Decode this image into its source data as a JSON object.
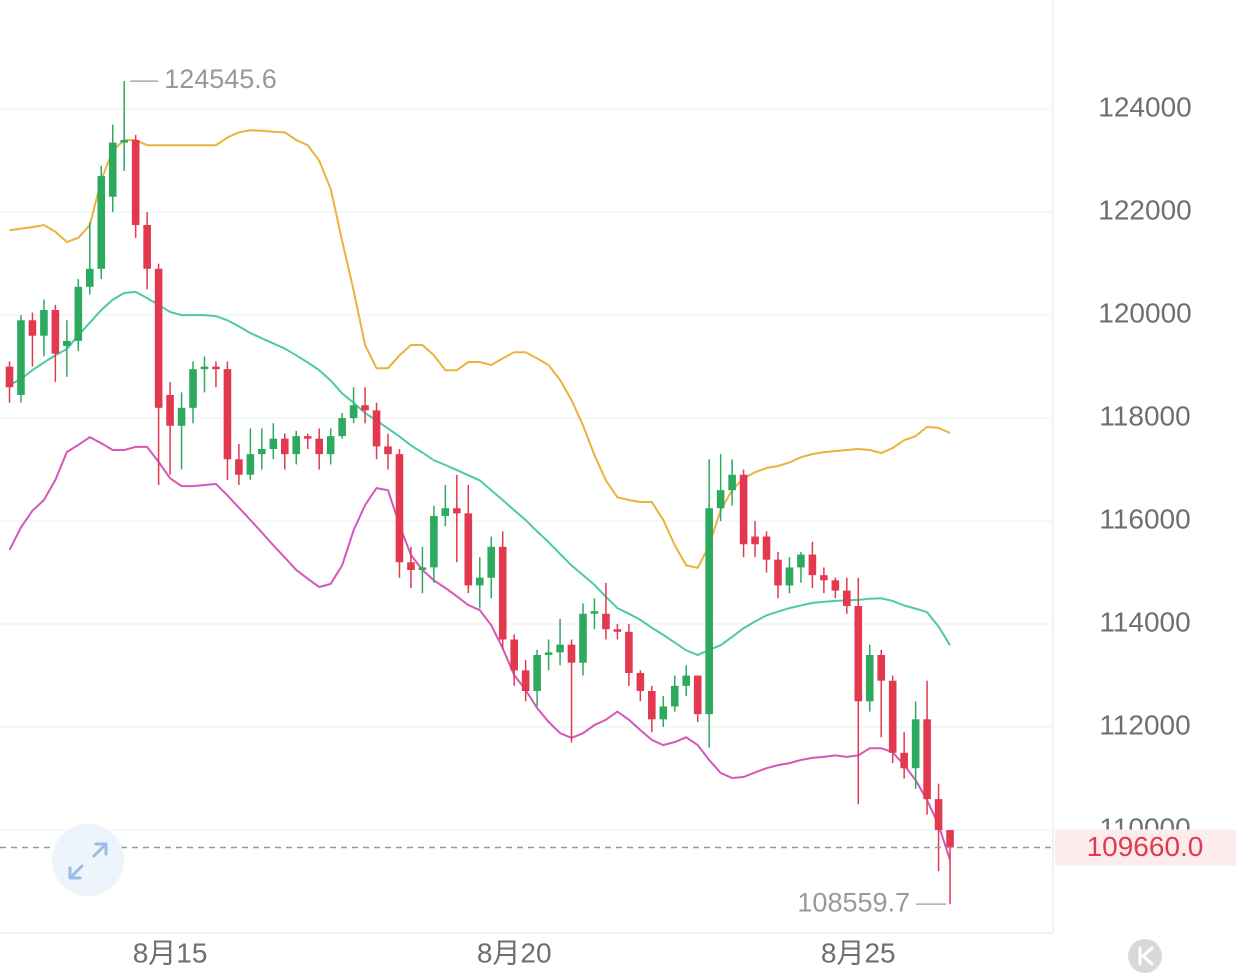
{
  "chart_data": {
    "type": "candlestick",
    "categories": [
      null,
      null,
      null,
      null,
      null,
      null,
      null,
      null,
      null,
      null,
      null,
      null,
      null,
      null,
      "8月15",
      null,
      null,
      null,
      null,
      null,
      null,
      null,
      null,
      null,
      null,
      null,
      null,
      null,
      null,
      null,
      null,
      null,
      null,
      null,
      null,
      null,
      null,
      null,
      null,
      null,
      null,
      null,
      null,
      null,
      "8月20",
      null,
      null,
      null,
      null,
      null,
      null,
      null,
      null,
      null,
      null,
      null,
      null,
      null,
      null,
      null,
      null,
      null,
      null,
      null,
      null,
      null,
      null,
      null,
      null,
      null,
      null,
      null,
      null,
      null,
      "8月25",
      null,
      null,
      null,
      null,
      null,
      null,
      null,
      null
    ],
    "open": [
      119000,
      118450,
      119900,
      119600,
      120100,
      119400,
      119500,
      120550,
      120900,
      122300,
      123350,
      123400,
      121750,
      120900,
      118450,
      117850,
      118200,
      118950,
      119000,
      118950,
      117200,
      116900,
      117300,
      117400,
      117600,
      117300,
      117650,
      117600,
      117300,
      117650,
      118000,
      118250,
      118150,
      117450,
      117300,
      115200,
      115050,
      115100,
      116100,
      116250,
      116150,
      114750,
      114900,
      115500,
      113700,
      113100,
      112700,
      113400,
      113450,
      113600,
      113250,
      114200,
      114200,
      113900,
      113850,
      113050,
      112700,
      112150,
      112400,
      112800,
      113000,
      112250,
      116250,
      116600,
      116900,
      115700,
      115700,
      115250,
      114750,
      115100,
      115350,
      114950,
      114850,
      114650,
      114350,
      112500,
      113400,
      112900,
      111500,
      111200,
      112150,
      110600,
      110000
    ],
    "high": [
      119100,
      120000,
      120050,
      120300,
      120200,
      119900,
      120700,
      121800,
      122900,
      123700,
      124545.6,
      123500,
      122000,
      121000,
      118700,
      118500,
      119100,
      119200,
      119100,
      119100,
      117500,
      117800,
      117800,
      117900,
      117700,
      117750,
      117700,
      117800,
      117800,
      118100,
      118600,
      118600,
      118300,
      117700,
      117400,
      115500,
      115500,
      116300,
      116700,
      116900,
      116700,
      115300,
      115700,
      115800,
      113800,
      113300,
      113500,
      113700,
      114100,
      113700,
      114400,
      114500,
      114800,
      114000,
      114000,
      113100,
      112800,
      112600,
      113000,
      113200,
      113000,
      117200,
      117300,
      117200,
      117000,
      116000,
      115800,
      115400,
      115300,
      115400,
      115600,
      115100,
      114900,
      114900,
      114900,
      113600,
      113500,
      113000,
      111900,
      112500,
      112900,
      110900,
      110000
    ],
    "low": [
      118300,
      118300,
      119000,
      119200,
      118700,
      118800,
      119300,
      120400,
      120700,
      122000,
      122800,
      121500,
      120500,
      116700,
      116900,
      117000,
      117900,
      118500,
      118600,
      116800,
      116700,
      116800,
      117000,
      117200,
      117000,
      117100,
      117400,
      117000,
      117100,
      117600,
      117900,
      117900,
      117200,
      117000,
      114900,
      114700,
      114600,
      114800,
      115900,
      115200,
      114600,
      114300,
      114500,
      113500,
      112800,
      112500,
      112400,
      113100,
      113200,
      111700,
      113000,
      113900,
      113700,
      113700,
      112800,
      112500,
      111900,
      112000,
      112300,
      112600,
      112100,
      111600,
      116000,
      116300,
      115300,
      115300,
      115000,
      114500,
      114600,
      114800,
      114700,
      114600,
      114500,
      114200,
      110500,
      112300,
      111800,
      111300,
      111000,
      110800,
      110300,
      109200,
      108559.7
    ],
    "close": [
      118600,
      119900,
      119600,
      120100,
      119250,
      119500,
      120550,
      120900,
      122700,
      123350,
      123400,
      121750,
      120900,
      118200,
      117850,
      118200,
      118950,
      119000,
      118950,
      117200,
      116900,
      117300,
      117400,
      117600,
      117300,
      117650,
      117600,
      117300,
      117650,
      118000,
      118250,
      118150,
      117450,
      117300,
      115200,
      115050,
      115100,
      116100,
      116250,
      116150,
      114750,
      114900,
      115500,
      113700,
      113100,
      112700,
      113400,
      113450,
      113600,
      113250,
      114200,
      114250,
      113900,
      113850,
      113050,
      112700,
      112150,
      112400,
      112800,
      113000,
      112250,
      116250,
      116600,
      116900,
      115550,
      115550,
      115250,
      114750,
      115100,
      115350,
      114950,
      114850,
      114650,
      114350,
      112500,
      113400,
      112900,
      111500,
      111200,
      112150,
      110600,
      110000,
      109660
    ],
    "up_color": "#2eaa5f",
    "down_color": "#e2394f",
    "bands": [
      {
        "color": "#e9b33c",
        "values": [
          121650,
          121680,
          121710,
          121750,
          121620,
          121420,
          121500,
          121750,
          122620,
          123200,
          123400,
          123400,
          123300,
          123300,
          123300,
          123300,
          123300,
          123300,
          123300,
          123450,
          123550,
          123590,
          123580,
          123560,
          123550,
          123400,
          123300,
          123000,
          122450,
          121450,
          120480,
          119420,
          118970,
          118970,
          119220,
          119420,
          119420,
          119220,
          118930,
          118930,
          119090,
          119090,
          119030,
          119160,
          119280,
          119280,
          119160,
          119030,
          118740,
          118350,
          117860,
          117280,
          116790,
          116460,
          116410,
          116370,
          116370,
          116020,
          115530,
          115140,
          115090,
          115530,
          116210,
          116600,
          116830,
          116950,
          117030,
          117070,
          117140,
          117240,
          117300,
          117340,
          117360,
          117380,
          117400,
          117380,
          117320,
          117420,
          117570,
          117650,
          117830,
          117810,
          117710
        ]
      },
      {
        "color": "#4ccaa6",
        "values": [
          118640,
          118760,
          118930,
          119080,
          119220,
          119340,
          119610,
          119850,
          120100,
          120300,
          120430,
          120450,
          120330,
          120200,
          120060,
          120000,
          120000,
          120000,
          119980,
          119900,
          119780,
          119650,
          119550,
          119450,
          119350,
          119220,
          119080,
          118930,
          118730,
          118480,
          118300,
          118100,
          117950,
          117800,
          117640,
          117470,
          117330,
          117180,
          117090,
          116990,
          116890,
          116790,
          116600,
          116410,
          116210,
          116020,
          115800,
          115590,
          115360,
          115140,
          114950,
          114760,
          114530,
          114310,
          114200,
          114080,
          113930,
          113790,
          113640,
          113490,
          113400,
          113500,
          113590,
          113750,
          113920,
          114050,
          114170,
          114240,
          114310,
          114360,
          114410,
          114430,
          114450,
          114460,
          114470,
          114490,
          114500,
          114450,
          114360,
          114300,
          114230,
          113950,
          113590
        ]
      },
      {
        "color": "#d457b9",
        "values": [
          115440,
          115880,
          116200,
          116410,
          116800,
          117340,
          117480,
          117630,
          117510,
          117380,
          117380,
          117440,
          117440,
          117150,
          116830,
          116680,
          116680,
          116700,
          116720,
          116500,
          116260,
          116020,
          115780,
          115530,
          115290,
          115050,
          114880,
          114720,
          114780,
          115140,
          115820,
          116310,
          116640,
          116600,
          115920,
          115340,
          115050,
          114850,
          114700,
          114540,
          114370,
          114270,
          113980,
          113530,
          113010,
          112720,
          112370,
          112100,
          111880,
          111790,
          111880,
          112040,
          112140,
          112300,
          112140,
          111940,
          111750,
          111650,
          111710,
          111800,
          111650,
          111360,
          111110,
          111010,
          111030,
          111120,
          111200,
          111260,
          111300,
          111360,
          111400,
          111420,
          111450,
          111420,
          111450,
          111590,
          111590,
          111510,
          111260,
          110970,
          110580,
          110100,
          109420
        ]
      }
    ],
    "ylim": [
      108000,
      126120
    ],
    "yticks": [
      110000,
      112000,
      114000,
      116000,
      118000,
      120000,
      122000,
      124000
    ],
    "grid": true,
    "max_label": 124545.6,
    "min_label": 108559.7,
    "last_price": {
      "value": 109660,
      "label": "109660.0"
    }
  }
}
